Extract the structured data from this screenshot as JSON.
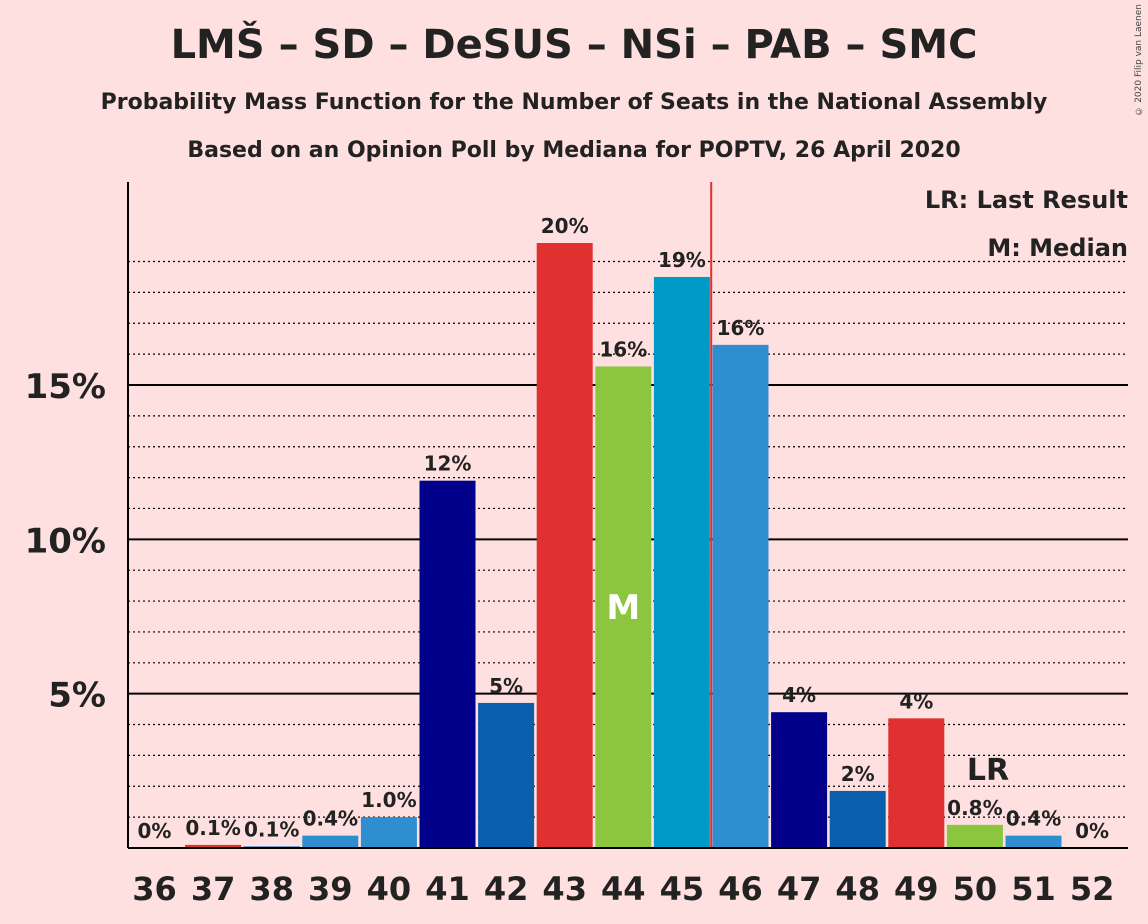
{
  "title": "LMŠ – SD – DeSUS – NSi – PAB – SMC",
  "subtitle1": "Probability Mass Function for the Number of Seats in the National Assembly",
  "subtitle2": "Based on an Opinion Poll by Mediana for POPTV, 26 April 2020",
  "copyright": "© 2020 Filip van Laenen",
  "legend": {
    "last_result": "LR: Last Result",
    "median": "M: Median"
  },
  "markers": {
    "median_label": "M",
    "last_result_label": "LR"
  },
  "chart_data": {
    "type": "bar",
    "categories": [
      "36",
      "37",
      "38",
      "39",
      "40",
      "41",
      "42",
      "43",
      "44",
      "45",
      "46",
      "47",
      "48",
      "49",
      "50",
      "51",
      "52"
    ],
    "values": [
      0,
      0.1,
      0.05,
      0.4,
      1.0,
      11.9,
      4.7,
      19.6,
      15.6,
      18.5,
      16.3,
      4.4,
      1.85,
      4.2,
      0.75,
      0.4,
      0
    ],
    "labels": [
      "0%",
      "0.1%",
      "0.1%",
      "0.4%",
      "1.0%",
      "12%",
      "5%",
      "20%",
      "16%",
      "19%",
      "16%",
      "4%",
      "2%",
      "4%",
      "0.8%",
      "0.4%",
      "0%"
    ],
    "colors": [
      "#e03030",
      "#e03030",
      "#0a5fad",
      "#2e8ecf",
      "#2e8ecf",
      "#00008b",
      "#0a5fad",
      "#e03030",
      "#8cc63f",
      "#009ac7",
      "#2e8ecf",
      "#00008b",
      "#0a5fad",
      "#e03030",
      "#8cc63f",
      "#2e8ecf",
      "#2e8ecf"
    ],
    "ylim": [
      0,
      21.5
    ],
    "yticks": [
      {
        "value": 5,
        "label": "5%"
      },
      {
        "value": 10,
        "label": "10%"
      },
      {
        "value": 15,
        "label": "15%"
      }
    ],
    "minor_gridlines": [
      1,
      2,
      3,
      4,
      6,
      7,
      8,
      9,
      11,
      12,
      13,
      14,
      16,
      17,
      18,
      19
    ],
    "median_seat": "44",
    "last_result_seat": "50",
    "majority_line_after": "45"
  }
}
